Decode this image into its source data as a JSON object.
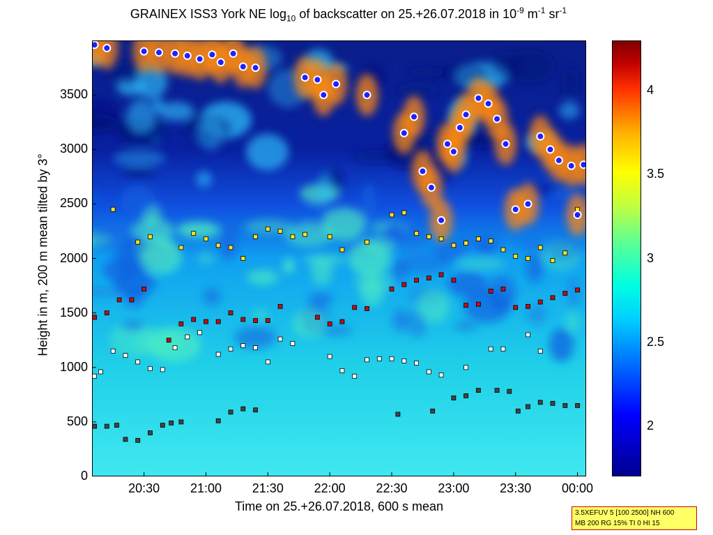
{
  "title": {
    "main": "GRAINEX ISS3 York NE log",
    "sub": "10",
    "mid": " of backscatter on 25.+26.07.2018 in 10",
    "sup1": "-9",
    "mid2": " m",
    "sup2": "-1",
    "mid3": " sr",
    "sup3": "-1"
  },
  "info_box": {
    "line1": "3.5XEFUV 5 [100 2500] NH 600",
    "line2": "MB 200 RG 15% TI 0 HI 15"
  },
  "chart_data": {
    "type": "heatmap",
    "xlabel": "Time on 25.+26.07.2018, 600 s mean",
    "ylabel": "Height in m, 200 m mean tilted by 3°",
    "x_range_hours": [
      20.08,
      24.07
    ],
    "ylim": [
      0,
      4000
    ],
    "x_ticks": [
      "20:30",
      "21:00",
      "21:30",
      "22:00",
      "22:30",
      "23:00",
      "23:30",
      "00:00"
    ],
    "x_tick_hours": [
      20.5,
      21.0,
      21.5,
      22.0,
      22.5,
      23.0,
      23.5,
      24.0
    ],
    "y_ticks": [
      0,
      500,
      1000,
      1500,
      2000,
      2500,
      3000,
      3500
    ],
    "colorbar": {
      "range": [
        1.7,
        4.3
      ],
      "ticks": [
        2,
        2.5,
        3,
        3.5,
        4
      ]
    },
    "layer_markers": {
      "low_layer": [
        [
          20.1,
          460
        ],
        [
          20.2,
          460
        ],
        [
          20.28,
          470
        ],
        [
          20.35,
          340
        ],
        [
          20.45,
          330
        ],
        [
          20.55,
          400
        ],
        [
          20.65,
          470
        ],
        [
          20.72,
          490
        ],
        [
          20.8,
          500
        ],
        [
          21.1,
          510
        ],
        [
          21.2,
          590
        ],
        [
          21.3,
          620
        ],
        [
          21.4,
          610
        ],
        [
          22.55,
          570
        ],
        [
          22.83,
          600
        ],
        [
          23.0,
          720
        ],
        [
          23.1,
          740
        ],
        [
          23.2,
          790
        ],
        [
          23.35,
          790
        ],
        [
          23.45,
          780
        ],
        [
          23.52,
          600
        ],
        [
          23.6,
          640
        ],
        [
          23.7,
          680
        ],
        [
          23.8,
          670
        ],
        [
          23.9,
          650
        ],
        [
          24.0,
          650
        ]
      ],
      "mid_layer": [
        [
          20.1,
          920
        ],
        [
          20.15,
          960
        ],
        [
          20.25,
          1150
        ],
        [
          20.35,
          1110
        ],
        [
          20.45,
          1050
        ],
        [
          20.55,
          990
        ],
        [
          20.65,
          980
        ],
        [
          20.75,
          1180
        ],
        [
          20.85,
          1280
        ],
        [
          20.95,
          1320
        ],
        [
          21.1,
          1120
        ],
        [
          21.2,
          1170
        ],
        [
          21.3,
          1200
        ],
        [
          21.4,
          1180
        ],
        [
          21.5,
          1050
        ],
        [
          21.6,
          1260
        ],
        [
          21.7,
          1220
        ],
        [
          22.0,
          1100
        ],
        [
          22.1,
          970
        ],
        [
          22.2,
          920
        ],
        [
          22.3,
          1070
        ],
        [
          22.4,
          1080
        ],
        [
          22.5,
          1080
        ],
        [
          22.6,
          1060
        ],
        [
          22.7,
          1040
        ],
        [
          22.8,
          960
        ],
        [
          22.9,
          930
        ],
        [
          23.1,
          1000
        ],
        [
          23.3,
          1170
        ],
        [
          23.4,
          1170
        ],
        [
          23.6,
          1300
        ],
        [
          23.7,
          1150
        ]
      ],
      "upper_layer": [
        [
          20.1,
          1460
        ],
        [
          20.2,
          1500
        ],
        [
          20.3,
          1620
        ],
        [
          20.4,
          1620
        ],
        [
          20.5,
          1720
        ],
        [
          20.7,
          1250
        ],
        [
          20.8,
          1400
        ],
        [
          20.9,
          1440
        ],
        [
          21.0,
          1420
        ],
        [
          21.1,
          1420
        ],
        [
          21.2,
          1500
        ],
        [
          21.3,
          1440
        ],
        [
          21.4,
          1430
        ],
        [
          21.5,
          1430
        ],
        [
          21.6,
          1560
        ],
        [
          21.9,
          1460
        ],
        [
          22.0,
          1400
        ],
        [
          22.1,
          1420
        ],
        [
          22.2,
          1550
        ],
        [
          22.3,
          1540
        ],
        [
          22.5,
          1720
        ],
        [
          22.6,
          1760
        ],
        [
          22.7,
          1800
        ],
        [
          22.8,
          1820
        ],
        [
          22.9,
          1850
        ],
        [
          23.0,
          1800
        ],
        [
          23.1,
          1570
        ],
        [
          23.2,
          1580
        ],
        [
          23.3,
          1700
        ],
        [
          23.4,
          1720
        ],
        [
          23.5,
          1550
        ],
        [
          23.6,
          1560
        ],
        [
          23.7,
          1600
        ],
        [
          23.8,
          1640
        ],
        [
          23.9,
          1680
        ],
        [
          24.0,
          1710
        ]
      ],
      "top_layer": [
        [
          20.25,
          2450
        ],
        [
          20.45,
          2150
        ],
        [
          20.55,
          2200
        ],
        [
          20.8,
          2100
        ],
        [
          20.9,
          2230
        ],
        [
          21.0,
          2180
        ],
        [
          21.1,
          2120
        ],
        [
          21.2,
          2100
        ],
        [
          21.3,
          2000
        ],
        [
          21.4,
          2200
        ],
        [
          21.5,
          2270
        ],
        [
          21.6,
          2250
        ],
        [
          21.7,
          2200
        ],
        [
          21.8,
          2220
        ],
        [
          22.0,
          2200
        ],
        [
          22.1,
          2080
        ],
        [
          22.3,
          2150
        ],
        [
          22.5,
          2400
        ],
        [
          22.6,
          2420
        ],
        [
          22.7,
          2230
        ],
        [
          22.8,
          2200
        ],
        [
          22.9,
          2180
        ],
        [
          23.0,
          2120
        ],
        [
          23.1,
          2140
        ],
        [
          23.2,
          2180
        ],
        [
          23.3,
          2160
        ],
        [
          23.4,
          2080
        ],
        [
          23.5,
          2020
        ],
        [
          23.6,
          2000
        ],
        [
          23.7,
          2100
        ],
        [
          23.8,
          1980
        ],
        [
          23.9,
          2050
        ],
        [
          24.0,
          2450
        ]
      ]
    },
    "cloud_marks": [
      [
        20.1,
        3960
      ],
      [
        20.2,
        3930
      ],
      [
        20.5,
        3900
      ],
      [
        20.62,
        3890
      ],
      [
        20.75,
        3880
      ],
      [
        20.85,
        3860
      ],
      [
        20.95,
        3830
      ],
      [
        21.05,
        3870
      ],
      [
        21.12,
        3800
      ],
      [
        21.22,
        3880
      ],
      [
        21.3,
        3760
      ],
      [
        21.4,
        3750
      ],
      [
        21.8,
        3660
      ],
      [
        21.9,
        3640
      ],
      [
        21.95,
        3500
      ],
      [
        22.05,
        3600
      ],
      [
        22.3,
        3500
      ],
      [
        22.6,
        3150
      ],
      [
        22.68,
        3300
      ],
      [
        22.75,
        2800
      ],
      [
        22.82,
        2650
      ],
      [
        22.9,
        2350
      ],
      [
        22.95,
        3050
      ],
      [
        23.0,
        2980
      ],
      [
        23.05,
        3200
      ],
      [
        23.1,
        3320
      ],
      [
        23.2,
        3470
      ],
      [
        23.28,
        3420
      ],
      [
        23.35,
        3280
      ],
      [
        23.42,
        3050
      ],
      [
        23.5,
        2450
      ],
      [
        23.6,
        2500
      ],
      [
        23.7,
        3120
      ],
      [
        23.78,
        3000
      ],
      [
        23.85,
        2900
      ],
      [
        23.95,
        2850
      ],
      [
        24.0,
        2400
      ],
      [
        24.05,
        2860
      ]
    ]
  }
}
